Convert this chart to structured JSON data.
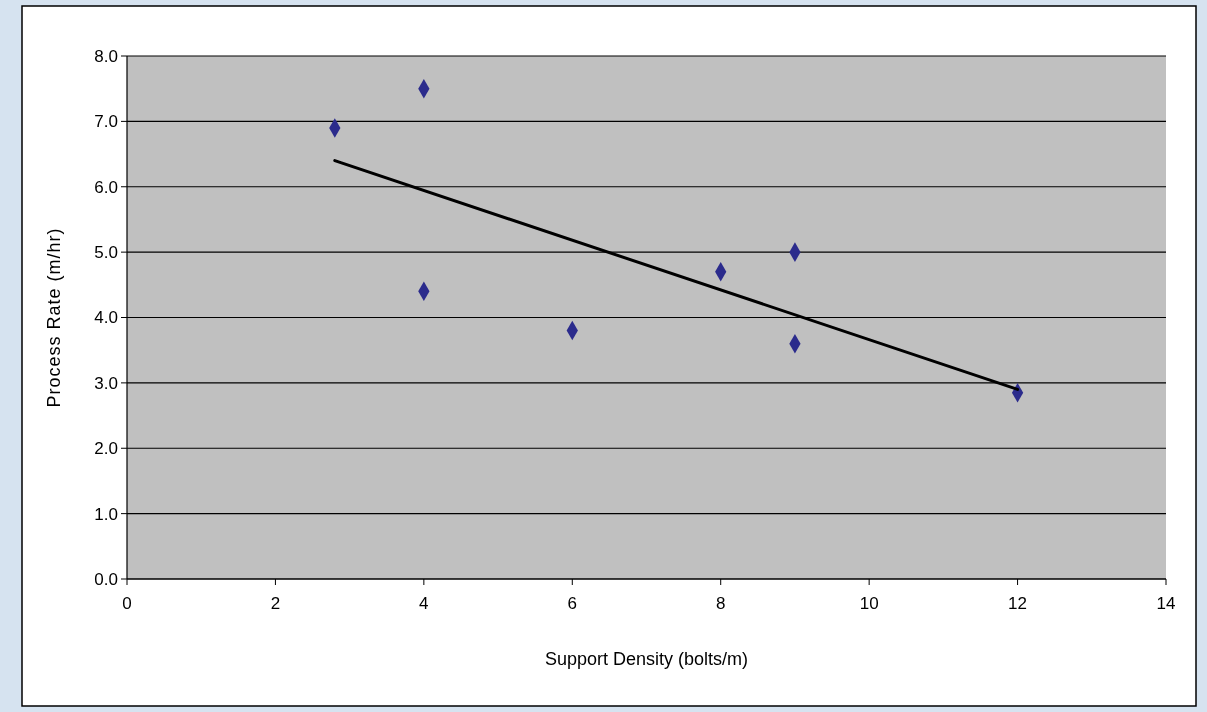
{
  "chart_data": {
    "type": "scatter",
    "xlabel": "Support Density (bolts/m)",
    "ylabel": "Process Rate (m/hr)",
    "xlim": [
      0,
      14
    ],
    "xticks": [
      0,
      2,
      4,
      6,
      8,
      10,
      12,
      14
    ],
    "ylim": [
      0,
      8
    ],
    "yticks": [
      {
        "value": 0,
        "label": "0.0"
      },
      {
        "value": 1,
        "label": "1.0"
      },
      {
        "value": 2,
        "label": "2.0"
      },
      {
        "value": 3,
        "label": "3.0"
      },
      {
        "value": 4,
        "label": "4.0"
      },
      {
        "value": 5,
        "label": "5.0"
      },
      {
        "value": 6,
        "label": "6.0"
      },
      {
        "value": 7,
        "label": "7.0"
      },
      {
        "value": 8,
        "label": "8.0"
      }
    ],
    "grid": "y",
    "series": [
      {
        "marker": "diamond",
        "color": "#2b2b8c",
        "x": [
          2.8,
          4,
          4,
          6,
          8,
          9,
          9,
          12
        ],
        "values": [
          6.9,
          7.5,
          4.4,
          3.8,
          4.7,
          5.0,
          3.6,
          2.85
        ]
      },
      {
        "type": "line",
        "color": "#000000",
        "x": [
          2.8,
          12
        ],
        "values": [
          6.4,
          2.9
        ]
      }
    ]
  }
}
